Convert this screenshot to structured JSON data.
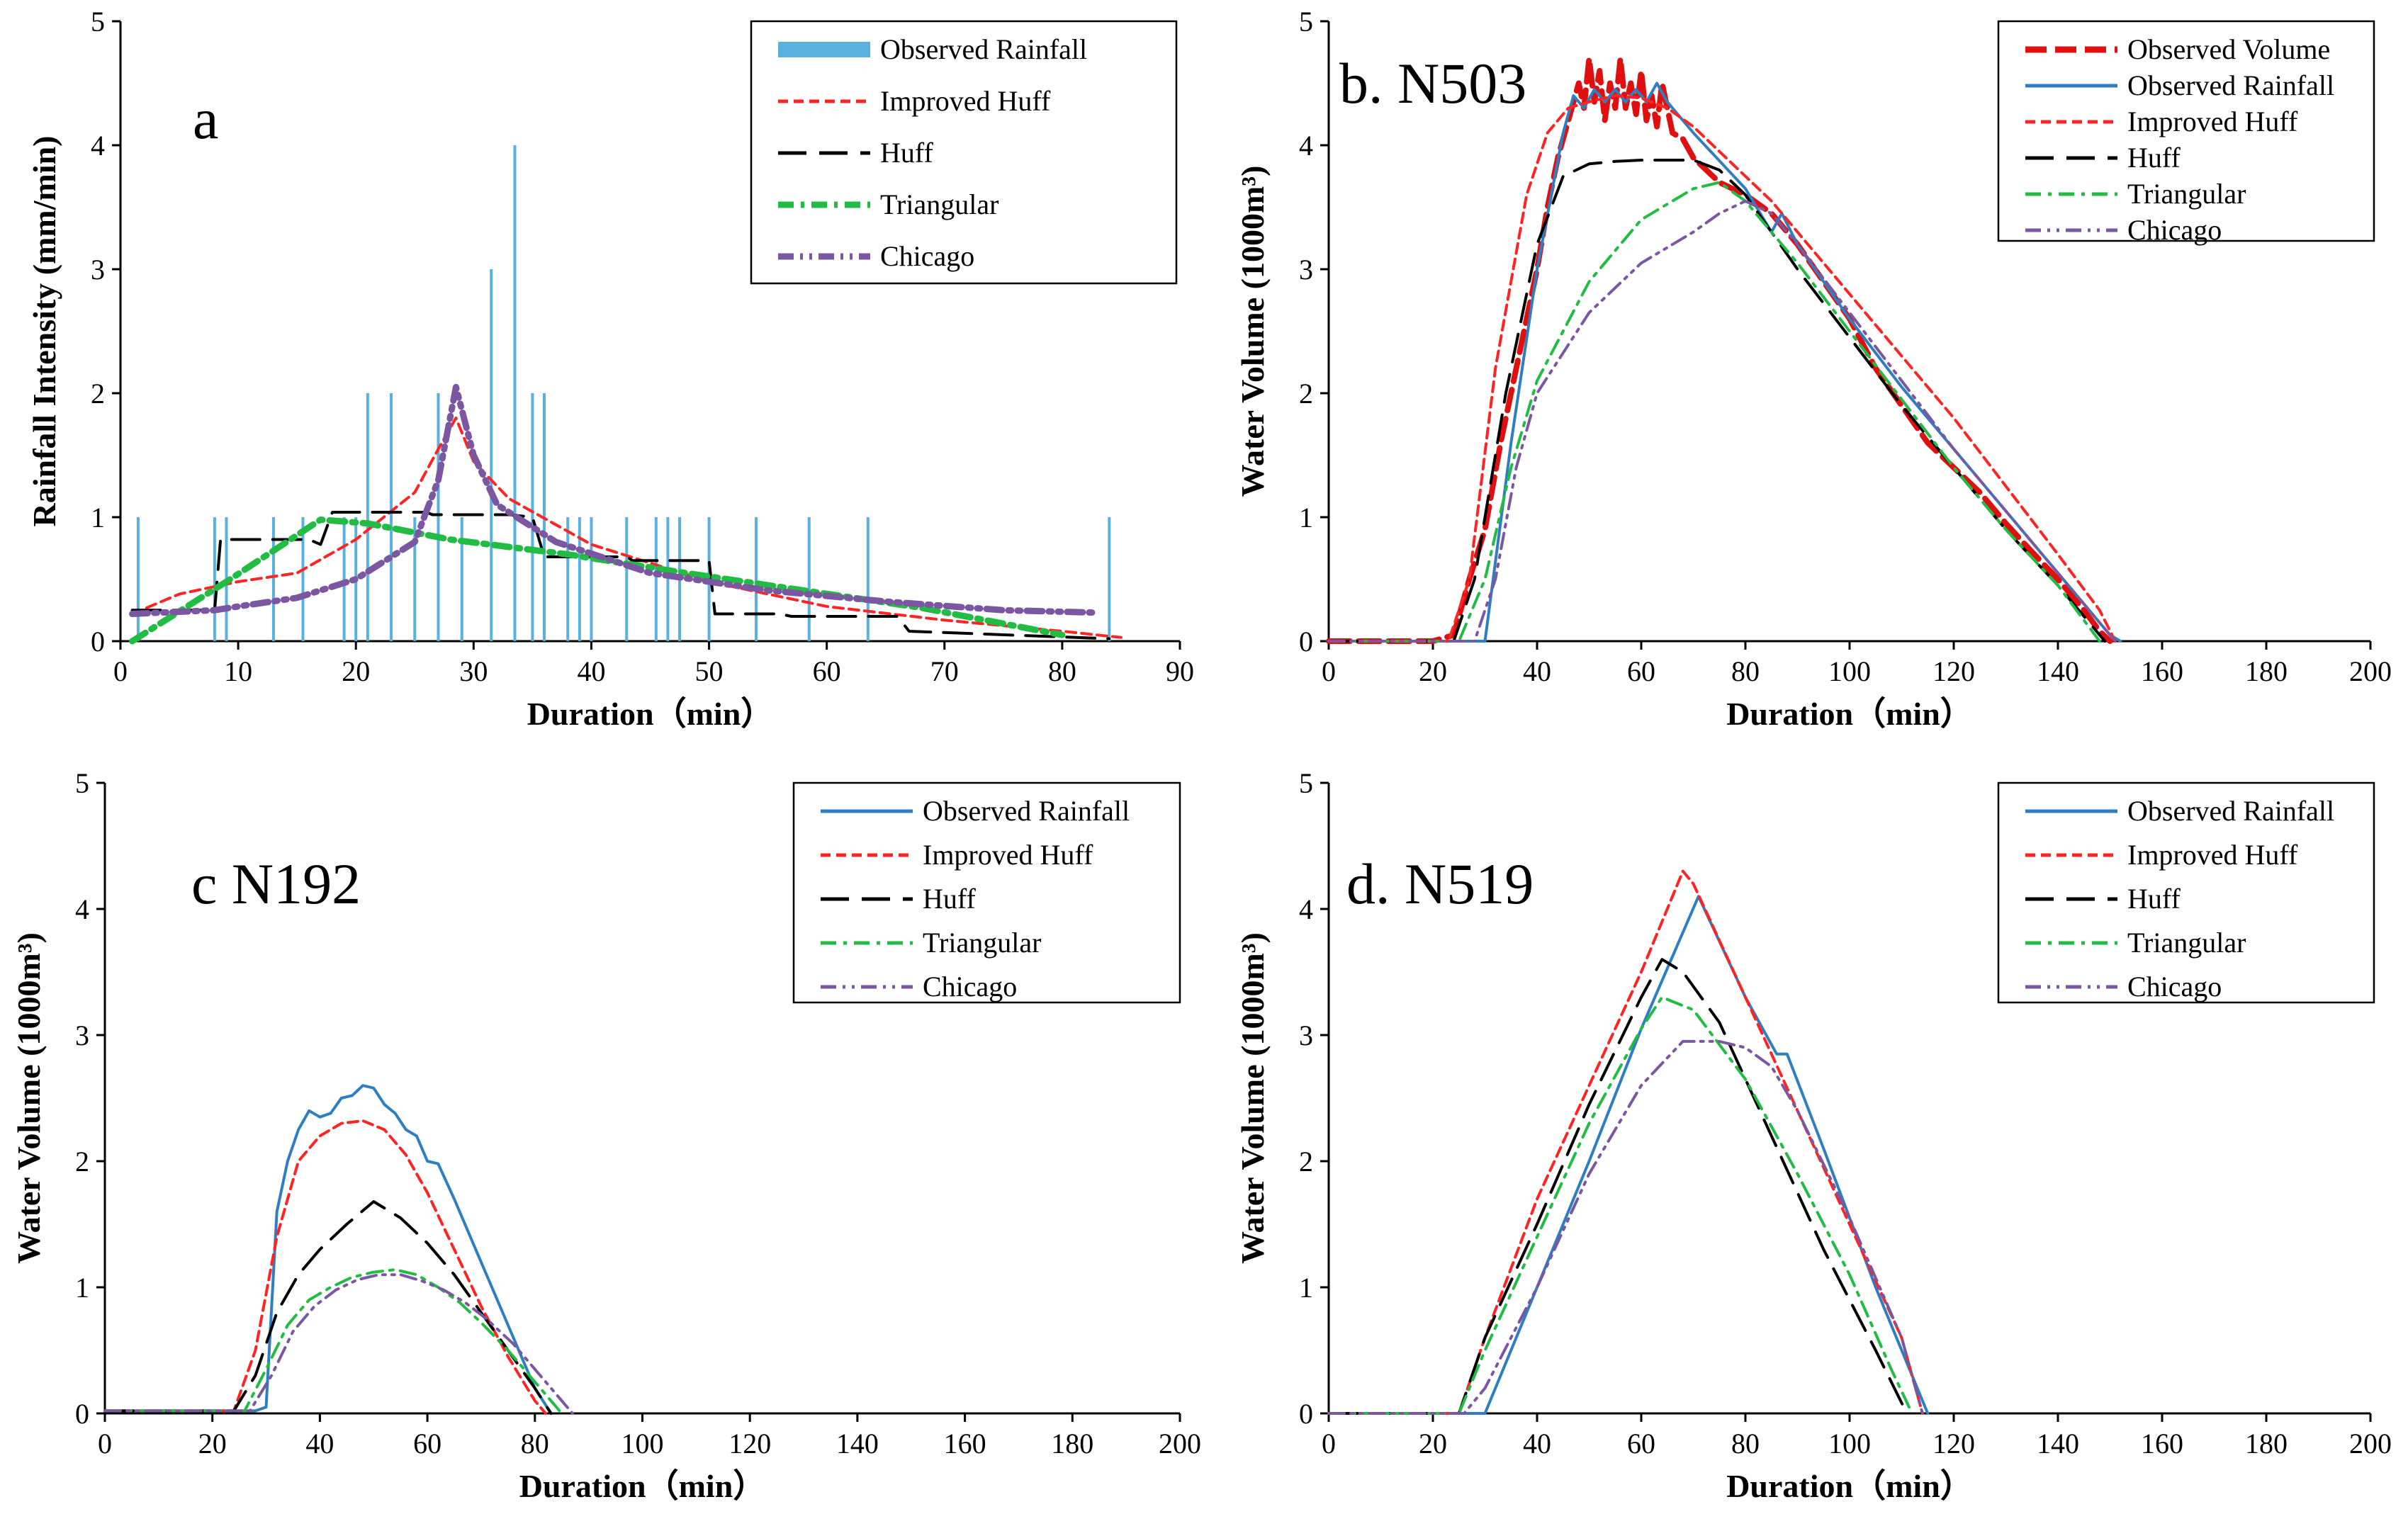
{
  "chart_data": [
    {
      "id": "a",
      "type": "line",
      "panel_label": "a",
      "xlabel": "Duration（min）",
      "ylabel": "Rainfall Intensity (mm/min)",
      "xlim": [
        0,
        90
      ],
      "ylim": [
        0,
        5
      ],
      "xticks": [
        "0",
        "10",
        "20",
        "30",
        "40",
        "50",
        "60",
        "70",
        "80",
        "90"
      ],
      "yticks": [
        "0",
        "1",
        "2",
        "3",
        "4",
        "5"
      ],
      "legend_position": "top-right",
      "bars": {
        "name": "Observed Rainfall",
        "x": [
          1.5,
          8,
          9,
          13,
          15.5,
          19,
          20,
          21,
          23,
          25,
          27,
          29,
          31.5,
          33.5,
          35,
          36,
          38,
          39,
          40,
          43,
          45.5,
          46.5,
          47.5,
          50,
          54,
          58.5,
          63.5,
          84
        ],
        "values": [
          1,
          1,
          1,
          1,
          1,
          1,
          1,
          2,
          2,
          1,
          2,
          1,
          3,
          4,
          2,
          2,
          1,
          1,
          1,
          1,
          1,
          1,
          1,
          1,
          1,
          1,
          1,
          1
        ]
      },
      "series": [
        {
          "name": "Improved Huff",
          "x": [
            1,
            5,
            10,
            15,
            20,
            25,
            27,
            28.5,
            30,
            33,
            40,
            50,
            60,
            70,
            80,
            85
          ],
          "values": [
            0.22,
            0.38,
            0.48,
            0.55,
            0.82,
            1.2,
            1.55,
            1.8,
            1.45,
            1.15,
            0.78,
            0.48,
            0.28,
            0.17,
            0.08,
            0.03
          ]
        },
        {
          "name": "Huff",
          "x": [
            1,
            8,
            8.5,
            16,
            17,
            18,
            26,
            26.5,
            33,
            35,
            36,
            43,
            43.5,
            48,
            50,
            50.5,
            56,
            57,
            66,
            67,
            84
          ],
          "values": [
            0.25,
            0.25,
            0.82,
            0.82,
            0.78,
            1.04,
            1.04,
            1.02,
            1.02,
            1.0,
            0.68,
            0.68,
            0.65,
            0.65,
            0.65,
            0.22,
            0.22,
            0.2,
            0.2,
            0.08,
            0.02
          ]
        },
        {
          "name": "Triangular",
          "x": [
            1,
            9,
            17,
            21,
            28,
            38,
            48,
            58,
            68,
            80
          ],
          "values": [
            0.0,
            0.48,
            0.98,
            0.95,
            0.82,
            0.7,
            0.55,
            0.41,
            0.27,
            0.05
          ]
        },
        {
          "name": "Chicago",
          "x": [
            1,
            8,
            10,
            15,
            20,
            25,
            27,
            28.5,
            30,
            32,
            37,
            45,
            55,
            65,
            75,
            83
          ],
          "values": [
            0.22,
            0.25,
            0.28,
            0.35,
            0.5,
            0.8,
            1.3,
            2.05,
            1.5,
            1.1,
            0.8,
            0.55,
            0.41,
            0.32,
            0.25,
            0.23
          ]
        }
      ],
      "legend": [
        "Observed Rainfall",
        "Improved Huff",
        "Huff",
        "Triangular",
        "Chicago"
      ]
    },
    {
      "id": "b",
      "type": "line",
      "panel_label": "b. N503",
      "xlabel": "Duration（min）",
      "ylabel": "Water Volume (1000m³)",
      "xlim": [
        0,
        200
      ],
      "ylim": [
        0,
        5
      ],
      "xticks": [
        "0",
        "20",
        "40",
        "60",
        "80",
        "100",
        "120",
        "140",
        "160",
        "180",
        "200"
      ],
      "yticks": [
        "0",
        "1",
        "2",
        "3",
        "4",
        "5"
      ],
      "legend_position": "top-right",
      "series": [
        {
          "name": "Observed Volume",
          "x": [
            0,
            20,
            24,
            27,
            30,
            33,
            36,
            38,
            40,
            42,
            44,
            46,
            48,
            49,
            50,
            51,
            52,
            53,
            54,
            55,
            56,
            57,
            58,
            59,
            60,
            61,
            62,
            63,
            64,
            66,
            68,
            70,
            75,
            80,
            85,
            90,
            95,
            100,
            105,
            110,
            115,
            120,
            125,
            130,
            135,
            140,
            145,
            148,
            150
          ],
          "values": [
            0,
            0,
            0.05,
            0.5,
            0.9,
            1.6,
            2.2,
            2.6,
            3.0,
            3.5,
            3.9,
            4.2,
            4.5,
            4.3,
            4.7,
            4.35,
            4.6,
            4.2,
            4.5,
            4.3,
            4.7,
            4.3,
            4.5,
            4.25,
            4.6,
            4.2,
            4.4,
            4.15,
            4.5,
            4.1,
            4.05,
            3.9,
            3.7,
            3.6,
            3.45,
            3.2,
            2.9,
            2.6,
            2.2,
            1.9,
            1.6,
            1.4,
            1.2,
            0.95,
            0.72,
            0.5,
            0.25,
            0.08,
            0.0
          ]
        },
        {
          "name": "Observed Rainfall",
          "x": [
            0,
            28,
            30,
            35,
            40,
            45,
            47,
            49,
            51,
            53,
            55,
            57,
            59,
            61,
            63,
            65,
            70,
            80,
            85,
            87,
            90,
            100,
            110,
            120,
            130,
            140,
            150,
            152
          ],
          "values": [
            0,
            0,
            0.0,
            1.6,
            3.0,
            4.1,
            4.4,
            4.3,
            4.45,
            4.35,
            4.45,
            4.35,
            4.45,
            4.35,
            4.5,
            4.35,
            4.1,
            3.65,
            3.3,
            3.45,
            3.2,
            2.6,
            2.05,
            1.55,
            1.05,
            0.55,
            0.05,
            0.0
          ]
        },
        {
          "name": "Improved Huff",
          "x": [
            0,
            23,
            27,
            32,
            38,
            42,
            46,
            50,
            55,
            60,
            65,
            70,
            75,
            80,
            85,
            90,
            100,
            110,
            120,
            130,
            140,
            148,
            151
          ],
          "values": [
            0,
            0,
            0.5,
            2.2,
            3.6,
            4.1,
            4.3,
            4.35,
            4.4,
            4.38,
            4.3,
            4.15,
            3.95,
            3.75,
            3.55,
            3.3,
            2.8,
            2.3,
            1.8,
            1.25,
            0.7,
            0.25,
            0.0
          ]
        },
        {
          "name": "Huff",
          "x": [
            0,
            24,
            28,
            34,
            40,
            45,
            50,
            55,
            60,
            65,
            70,
            75,
            80,
            90,
            100,
            110,
            120,
            130,
            140,
            149
          ],
          "values": [
            0,
            0,
            0.5,
            2.0,
            3.2,
            3.75,
            3.85,
            3.87,
            3.88,
            3.88,
            3.88,
            3.8,
            3.6,
            3.0,
            2.45,
            1.9,
            1.4,
            0.9,
            0.45,
            0.0
          ]
        },
        {
          "name": "Triangular",
          "x": [
            0,
            25,
            30,
            35,
            40,
            50,
            60,
            70,
            75,
            80,
            90,
            100,
            110,
            120,
            130,
            140,
            148
          ],
          "values": [
            0,
            0,
            0.5,
            1.4,
            2.1,
            2.9,
            3.4,
            3.65,
            3.7,
            3.55,
            3.05,
            2.5,
            1.95,
            1.4,
            0.9,
            0.45,
            0.0
          ]
        },
        {
          "name": "Chicago",
          "x": [
            0,
            28,
            32,
            36,
            40,
            50,
            60,
            70,
            75,
            80,
            85,
            90,
            100,
            110,
            120,
            130,
            140,
            150,
            151
          ],
          "values": [
            0,
            0,
            0.5,
            1.4,
            2.0,
            2.65,
            3.05,
            3.3,
            3.45,
            3.55,
            3.45,
            3.2,
            2.65,
            2.1,
            1.55,
            1.05,
            0.55,
            0.05,
            0.0
          ]
        }
      ],
      "legend": [
        "Observed Volume",
        "Observed Rainfall",
        "Improved Huff",
        "Huff",
        "Triangular",
        "Chicago"
      ]
    },
    {
      "id": "c",
      "type": "line",
      "panel_label": "c N192",
      "xlabel": "Duration（min）",
      "ylabel": "Water Volume (1000m³)",
      "xlim": [
        0,
        200
      ],
      "ylim": [
        0,
        5
      ],
      "xticks": [
        "0",
        "20",
        "40",
        "60",
        "80",
        "100",
        "120",
        "140",
        "160",
        "180",
        "200"
      ],
      "yticks": [
        "0",
        "1",
        "2",
        "3",
        "4",
        "5"
      ],
      "legend_position": "top-right",
      "series": [
        {
          "name": "Observed Rainfall",
          "x": [
            0,
            28,
            30,
            32,
            34,
            36,
            38,
            40,
            42,
            44,
            46,
            48,
            50,
            52,
            54,
            56,
            58,
            60,
            62,
            65,
            70,
            75,
            80,
            83
          ],
          "values": [
            0.02,
            0.02,
            0.05,
            1.6,
            2.0,
            2.25,
            2.4,
            2.35,
            2.38,
            2.5,
            2.52,
            2.6,
            2.58,
            2.45,
            2.38,
            2.25,
            2.2,
            2.0,
            1.98,
            1.7,
            1.2,
            0.7,
            0.2,
            0.0
          ]
        },
        {
          "name": "Improved Huff",
          "x": [
            0,
            24,
            28,
            32,
            36,
            40,
            44,
            48,
            52,
            56,
            60,
            65,
            70,
            75,
            80,
            82
          ],
          "values": [
            0.02,
            0.02,
            0.5,
            1.4,
            2.0,
            2.2,
            2.3,
            2.32,
            2.25,
            2.05,
            1.75,
            1.3,
            0.85,
            0.45,
            0.1,
            0.0
          ]
        },
        {
          "name": "Huff",
          "x": [
            0,
            24,
            28,
            32,
            36,
            40,
            45,
            50,
            55,
            60,
            65,
            70,
            75,
            80,
            83
          ],
          "values": [
            0.02,
            0.02,
            0.3,
            0.8,
            1.1,
            1.3,
            1.5,
            1.68,
            1.55,
            1.35,
            1.1,
            0.8,
            0.5,
            0.2,
            0.0
          ]
        },
        {
          "name": "Triangular",
          "x": [
            0,
            26,
            30,
            34,
            38,
            42,
            46,
            50,
            54,
            58,
            62,
            66,
            70,
            75,
            80,
            85
          ],
          "values": [
            0.02,
            0.02,
            0.35,
            0.7,
            0.9,
            1.0,
            1.08,
            1.12,
            1.14,
            1.1,
            1.0,
            0.88,
            0.72,
            0.5,
            0.25,
            0.0
          ]
        },
        {
          "name": "Chicago",
          "x": [
            0,
            27,
            31,
            35,
            39,
            43,
            47,
            51,
            55,
            59,
            63,
            67,
            71,
            76,
            81,
            87
          ],
          "values": [
            0.02,
            0.02,
            0.3,
            0.65,
            0.85,
            0.98,
            1.06,
            1.1,
            1.1,
            1.05,
            0.98,
            0.88,
            0.75,
            0.55,
            0.3,
            0.0
          ]
        }
      ],
      "legend": [
        "Observed Rainfall",
        "Improved Huff",
        "Huff",
        "Triangular",
        "Chicago"
      ]
    },
    {
      "id": "d",
      "type": "line",
      "panel_label": "d. N519",
      "xlabel": "Duration（min）",
      "ylabel": "Water Volume (1000m³)",
      "xlim": [
        0,
        200
      ],
      "ylim": [
        0,
        5
      ],
      "xticks": [
        "0",
        "20",
        "40",
        "60",
        "80",
        "100",
        "120",
        "140",
        "160",
        "180",
        "200"
      ],
      "yticks": [
        "0",
        "1",
        "2",
        "3",
        "4",
        "5"
      ],
      "legend_position": "top-right",
      "series": [
        {
          "name": "Observed Rainfall",
          "x": [
            0,
            28,
            30,
            40,
            50,
            60,
            71,
            80,
            86,
            88,
            95,
            105,
            115
          ],
          "values": [
            0,
            0,
            0.0,
            1.0,
            2.0,
            3.05,
            4.1,
            3.3,
            2.85,
            2.85,
            2.1,
            1.0,
            0.0
          ]
        },
        {
          "name": "Improved Huff",
          "x": [
            0,
            25,
            30,
            40,
            50,
            60,
            68,
            70,
            80,
            90,
            100,
            110,
            114
          ],
          "values": [
            0,
            0,
            0.6,
            1.7,
            2.6,
            3.5,
            4.3,
            4.2,
            3.3,
            2.4,
            1.5,
            0.6,
            0.0
          ]
        },
        {
          "name": "Huff",
          "x": [
            0,
            25,
            30,
            40,
            50,
            60,
            64,
            68,
            75,
            85,
            95,
            105,
            111
          ],
          "values": [
            0,
            0,
            0.6,
            1.5,
            2.45,
            3.3,
            3.6,
            3.5,
            3.1,
            2.2,
            1.3,
            0.5,
            0.0
          ]
        },
        {
          "name": "Triangular",
          "x": [
            0,
            25,
            30,
            40,
            50,
            60,
            64,
            70,
            80,
            90,
            100,
            108,
            112
          ],
          "values": [
            0,
            0,
            0.5,
            1.4,
            2.3,
            3.05,
            3.3,
            3.2,
            2.65,
            1.9,
            1.1,
            0.35,
            0.0
          ]
        },
        {
          "name": "Chicago",
          "x": [
            0,
            26,
            30,
            40,
            50,
            60,
            68,
            75,
            80,
            85,
            90,
            100,
            110,
            114
          ],
          "values": [
            0,
            0,
            0.2,
            1.0,
            1.9,
            2.6,
            2.95,
            2.95,
            2.9,
            2.75,
            2.4,
            1.55,
            0.6,
            0.0
          ]
        }
      ],
      "legend": [
        "Observed Rainfall",
        "Improved Huff",
        "Huff",
        "Triangular",
        "Chicago"
      ]
    }
  ],
  "styles": {
    "Observed Rainfall": {
      "color": "#2f7ec2",
      "dash": ""
    },
    "Observed Volume": {
      "color": "#e01010",
      "dash": "30,12"
    },
    "Improved Huff": {
      "color": "#ff2424",
      "dash": "14,8"
    },
    "Huff": {
      "color": "#000000",
      "dash": "40,18"
    },
    "Triangular": {
      "color": "#22bb44",
      "dash": "22,10,5,10"
    },
    "Chicago": {
      "color": "#7a57a0",
      "dash": "22,9,4,9,4,9"
    },
    "Observed Rainfall Bars": {
      "color": "#5ab0de"
    }
  }
}
